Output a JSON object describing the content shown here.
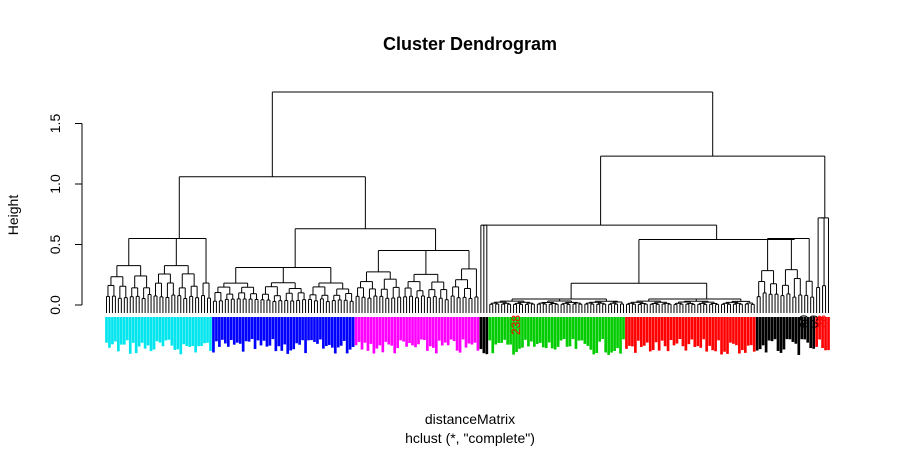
{
  "chart_data": {
    "type": "dendrogram",
    "title": "Cluster Dendrogram",
    "ylabel": "Height",
    "xlabel": "distanceMatrix",
    "subtitle": "hclust (*, \"complete\")",
    "ylim": [
      0,
      1.8
    ],
    "yticks": [
      0.0,
      0.5,
      1.0,
      1.5
    ],
    "ytick_labels": [
      "0.0",
      "0.5",
      "1.0",
      "1.5"
    ],
    "root_height": 1.76,
    "clusters": [
      {
        "color": "#00e5ee",
        "height": 0.55,
        "leaf_count": 36
      },
      {
        "color": "#0000ff",
        "height": 0.31,
        "leaf_count": 48
      },
      {
        "color": "#ff00ff",
        "height": 0.45,
        "leaf_count": 42
      },
      {
        "color": "#000000",
        "height": 0.66,
        "leaf_count": 3
      },
      {
        "color": "#00cc00",
        "height": 0.05,
        "leaf_count": 46
      },
      {
        "color": "#ff0000",
        "height": 0.05,
        "leaf_count": 44
      },
      {
        "color": "#000000",
        "height": 0.55,
        "leaf_count": 20
      },
      {
        "color": "#ff0000",
        "height": 0.72,
        "leaf_count": 5
      }
    ],
    "merges": [
      {
        "left": "cyan",
        "right": "blue-magenta",
        "height": 1.06
      },
      {
        "left": "blue",
        "right": "magenta",
        "height": 0.63
      },
      {
        "left": "mixed-green-red",
        "right": "right-group",
        "height": 1.23
      },
      {
        "left": "mixed-green-red",
        "right": "small-group",
        "height": 0.66
      },
      {
        "left": "root-left",
        "right": "root-right",
        "height": 1.76
      }
    ],
    "visible_leaf_labels": [
      {
        "text": "238",
        "color": "#ff0000"
      },
      {
        "text": "60",
        "color": "#000000"
      },
      {
        "text": "69",
        "color": "#000000"
      },
      {
        "text": "28",
        "color": "#ff0000"
      }
    ]
  }
}
